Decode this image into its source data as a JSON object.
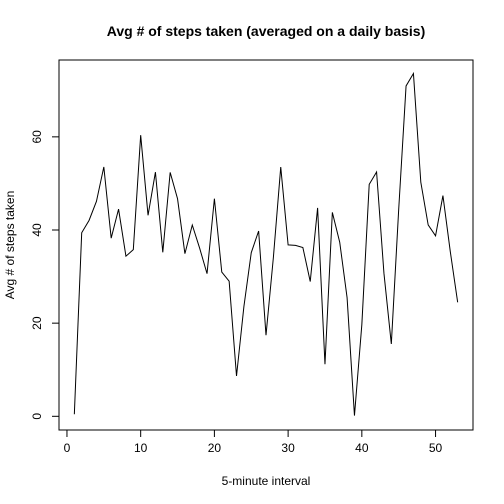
{
  "chart_data": {
    "type": "line",
    "title": "Avg # of steps taken (averaged on a daily basis)",
    "xlabel": "5-minute interval",
    "ylabel": "Avg # of steps taken",
    "x": [
      1,
      2,
      3,
      4,
      5,
      6,
      7,
      8,
      9,
      10,
      11,
      12,
      13,
      14,
      15,
      16,
      17,
      18,
      19,
      20,
      21,
      22,
      23,
      24,
      25,
      26,
      27,
      28,
      29,
      30,
      31,
      32,
      33,
      34,
      35,
      36,
      37,
      38,
      39,
      40,
      41,
      42,
      43,
      44,
      45,
      46,
      47,
      48,
      49,
      50,
      51,
      52,
      53
    ],
    "series": [
      {
        "name": "Avg # of steps taken",
        "color": "#000000",
        "values": [
          0.4375,
          39.4167,
          42.0694,
          46.1597,
          53.5417,
          38.2465,
          44.4826,
          34.375,
          35.7778,
          60.3542,
          43.1458,
          52.4236,
          35.2049,
          52.375,
          46.7083,
          34.9167,
          41.0729,
          36.0938,
          30.6285,
          46.7361,
          30.9653,
          29.0104,
          8.6528,
          23.5347,
          35.1354,
          39.7847,
          17.4236,
          34.0938,
          53.5208,
          36.8056,
          36.7049,
          36.2465,
          28.9375,
          44.7326,
          11.1771,
          43.7778,
          37.3785,
          25.4722,
          0.1424,
          19.6667,
          49.7882,
          52.4653,
          30.6979,
          15.5278,
          44.3993,
          70.9271,
          73.5903,
          50.2708,
          41.0903,
          38.7569,
          47.3819,
          35.3576,
          24.4688
        ]
      }
    ],
    "xlim": [
      -1.08,
      55.08
    ],
    "ylim": [
      -2.94,
      76.5
    ],
    "xticks": [
      0,
      10,
      20,
      30,
      40,
      50
    ],
    "yticks": [
      0,
      20,
      40,
      60
    ]
  }
}
